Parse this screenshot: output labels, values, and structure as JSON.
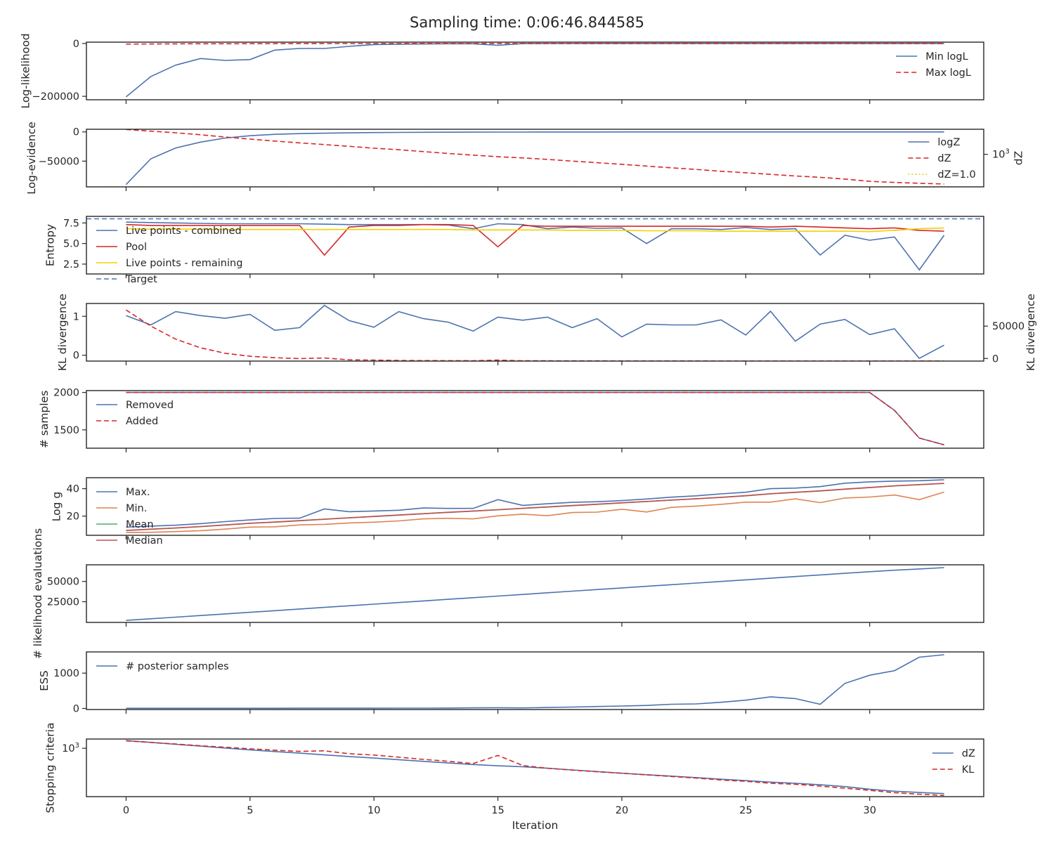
{
  "title": "Sampling time: 0:06:46.844585",
  "chart_data": [
    {
      "type": "line",
      "ylabel": "Log-likelihood",
      "xlim": [
        -1.6,
        34.6
      ],
      "ylim": [
        -213000,
        5000
      ],
      "yticks": [
        {
          "v": 0,
          "label": "0"
        },
        {
          "v": -200000,
          "label": "−200000"
        }
      ],
      "legend_position": "upper right",
      "series": [
        {
          "name": "Min logL",
          "color": "#4c72b0",
          "dash": "solid",
          "x_start": 0,
          "values": [
            -202000,
            -125000,
            -82000,
            -57000,
            -64000,
            -61000,
            -25000,
            -19000,
            -19000,
            -11000,
            -4000,
            -3000,
            -2000,
            -1000,
            -1000,
            -7000,
            -500,
            -300,
            -200,
            -100,
            -80,
            -60,
            -50,
            -40,
            -30,
            -20,
            -15,
            -10,
            -8,
            -6,
            -5,
            -4,
            -3,
            -2
          ]
        },
        {
          "name": "Max logL",
          "color": "#d62728",
          "dash": "dashed",
          "x_start": 0,
          "values": [
            -2500,
            -2000,
            -1500,
            -1200,
            -1000,
            -800,
            -600,
            -500,
            -400,
            -300,
            -250,
            -200,
            -150,
            -120,
            -100,
            -80,
            -60,
            -50,
            -40,
            -30,
            -25,
            -20,
            -15,
            -12,
            -10,
            -8,
            -6,
            -5,
            -4,
            -3,
            -2,
            -2,
            -1,
            -1
          ]
        }
      ]
    },
    {
      "type": "line",
      "ylabel": "Log-evidence",
      "ylabel_right": "dZ",
      "xlim": [
        -1.6,
        34.6
      ],
      "ylim": [
        -94000,
        4500
      ],
      "yticks": [
        {
          "v": 0,
          "label": "0"
        },
        {
          "v": -50000,
          "label": "−50000"
        }
      ],
      "y2_scale": "log",
      "y2lim": [
        0.98,
        210000
      ],
      "y2ticks": [
        {
          "v": 1000,
          "label": "10",
          "sup": "3"
        }
      ],
      "legend_position": "right",
      "series": [
        {
          "name": "logZ",
          "color": "#4c72b0",
          "dash": "solid",
          "axis": "left",
          "x_start": 0,
          "values": [
            -90000,
            -46000,
            -27500,
            -17500,
            -10500,
            -6500,
            -4200,
            -3000,
            -2200,
            -1600,
            -1200,
            -900,
            -700,
            -550,
            -450,
            -350,
            -280,
            -220,
            -180,
            -150,
            -120,
            -100,
            -85,
            -70,
            -60,
            -50,
            -42,
            -35,
            -30,
            -25,
            -20,
            -17,
            -14,
            -12
          ]
        },
        {
          "name": "dZ",
          "color": "#d62728",
          "dash": "dashed",
          "axis": "right",
          "x_start": 0,
          "values": [
            200000,
            140000,
            100000,
            65000,
            40000,
            26000,
            17000,
            11500,
            8000,
            5500,
            3700,
            2700,
            1800,
            1200,
            850,
            600,
            470,
            340,
            240,
            170,
            120,
            82,
            57,
            40,
            27,
            20,
            14,
            10,
            7.5,
            5.2,
            3.2,
            2.5,
            2.1,
            1.8
          ]
        },
        {
          "name": "dZ=1.0",
          "color": "#e8c220",
          "dash": "dotted",
          "axis": "right",
          "constant": 1.0
        }
      ]
    },
    {
      "type": "line",
      "ylabel": "Entropy",
      "xlim": [
        -1.6,
        34.6
      ],
      "ylim": [
        1.3,
        8.3
      ],
      "yticks": [
        {
          "v": 7.5,
          "label": "7.5"
        },
        {
          "v": 5.0,
          "label": "5.0"
        },
        {
          "v": 2.5,
          "label": "2.5"
        }
      ],
      "legend_position": "upper left",
      "series": [
        {
          "name": "Live points - combined",
          "color": "#4c72b0",
          "dash": "solid",
          "x_start": 0,
          "values": [
            7.6,
            7.55,
            7.5,
            7.45,
            7.4,
            7.4,
            7.4,
            7.4,
            7.35,
            7.3,
            7.3,
            7.3,
            7.3,
            7.25,
            6.8,
            7.4,
            7.3,
            6.8,
            7.0,
            6.85,
            6.9,
            5.0,
            6.8,
            6.8,
            6.7,
            6.95,
            6.7,
            6.8,
            3.6,
            6.0,
            5.4,
            5.8,
            1.8,
            6.0
          ]
        },
        {
          "name": "Pool",
          "color": "#d62728",
          "dash": "solid",
          "x_start": 0,
          "values": [
            7.3,
            7.2,
            7.2,
            7.2,
            7.2,
            7.2,
            7.2,
            7.2,
            3.6,
            7.0,
            7.2,
            7.2,
            7.3,
            7.3,
            7.2,
            4.6,
            7.2,
            7.1,
            7.1,
            7.1,
            7.1,
            7.1,
            7.1,
            7.1,
            7.1,
            7.1,
            7.0,
            7.1,
            7.0,
            6.9,
            6.8,
            6.9,
            6.6,
            6.5
          ]
        },
        {
          "name": "Live points - remaining",
          "color": "#f5d000",
          "dash": "solid",
          "x_start": 0,
          "values": [
            6.8,
            6.75,
            6.75,
            6.75,
            6.7,
            6.7,
            6.7,
            6.7,
            6.7,
            6.7,
            6.7,
            6.7,
            6.7,
            6.7,
            6.65,
            6.65,
            6.65,
            6.65,
            6.6,
            6.6,
            6.6,
            6.55,
            6.55,
            6.55,
            6.5,
            6.5,
            6.5,
            6.5,
            6.5,
            6.5,
            6.45,
            6.6,
            6.8,
            6.9
          ]
        },
        {
          "name": "Target",
          "color": "#4c72b0",
          "dash": "dashed",
          "constant": 8.0
        }
      ]
    },
    {
      "type": "line",
      "ylabel": "KL divergence",
      "ylabel_right": "KL divergence",
      "xlim": [
        -1.6,
        34.6
      ],
      "ylim": [
        -0.15,
        1.33
      ],
      "yticks": [
        {
          "v": 1,
          "label": "1"
        },
        {
          "v": 0,
          "label": "0"
        }
      ],
      "y2lim": [
        -4000,
        85000
      ],
      "y2ticks": [
        {
          "v": 50000,
          "label": "50000"
        },
        {
          "v": 0,
          "label": "0"
        }
      ],
      "series": [
        {
          "color": "#4c72b0",
          "dash": "solid",
          "axis": "left",
          "x_start": 0,
          "values": [
            1.02,
            0.78,
            1.12,
            1.02,
            0.95,
            1.05,
            0.64,
            0.71,
            1.28,
            0.89,
            0.72,
            1.12,
            0.94,
            0.85,
            0.62,
            0.98,
            0.9,
            0.98,
            0.71,
            0.94,
            0.47,
            0.8,
            0.78,
            0.78,
            0.91,
            0.52,
            1.13,
            0.36,
            0.8,
            0.92,
            0.53,
            0.68,
            -0.08,
            0.26
          ]
        },
        {
          "color": "#d62728",
          "dash": "dashed",
          "axis": "right",
          "x_start": 0,
          "values": [
            75000,
            50000,
            30000,
            16500,
            8000,
            3500,
            1200,
            -200,
            800,
            -2000,
            -2500,
            -3000,
            -3200,
            -3400,
            -3500,
            -2500,
            -3600,
            -3600,
            -3700,
            -3700,
            -3800,
            -3800,
            -3800,
            -3800,
            -3900,
            -3900,
            -3900,
            -3900,
            -3900,
            -3900,
            -3900,
            -3900,
            -3900,
            -3900
          ]
        }
      ]
    },
    {
      "type": "line",
      "ylabel": "# samples",
      "xlim": [
        -1.6,
        34.6
      ],
      "ylim": [
        1255,
        2025
      ],
      "yticks": [
        {
          "v": 2000,
          "label": "2000"
        },
        {
          "v": 1500,
          "label": "1500"
        }
      ],
      "legend_position": "upper left",
      "series": [
        {
          "name": "Removed",
          "color": "#4c72b0",
          "dash": "solid",
          "x_start": 0,
          "values": [
            2000,
            2000,
            2000,
            2000,
            2000,
            2000,
            2000,
            2000,
            2000,
            2000,
            2000,
            2000,
            2000,
            2000,
            2000,
            2000,
            2000,
            2000,
            2000,
            2000,
            2000,
            2000,
            2000,
            2000,
            2000,
            2000,
            2000,
            2000,
            2000,
            2000,
            2000,
            1760,
            1390,
            1300
          ]
        },
        {
          "name": "Added",
          "color": "#d62728",
          "dash": "dashed",
          "x_start": 0,
          "values": [
            2000,
            2000,
            2000,
            2000,
            2000,
            2000,
            2000,
            2000,
            2000,
            2000,
            2000,
            2000,
            2000,
            2000,
            2000,
            2000,
            2000,
            2000,
            2000,
            2000,
            2000,
            2000,
            2000,
            2000,
            2000,
            2000,
            2000,
            2000,
            2000,
            2000,
            2000,
            1760,
            1390,
            1300
          ]
        }
      ]
    },
    {
      "type": "line",
      "ylabel": "Log g",
      "xlim": [
        -1.6,
        34.6
      ],
      "ylim": [
        6,
        48
      ],
      "yticks": [
        {
          "v": 40,
          "label": "40"
        },
        {
          "v": 20,
          "label": "20"
        }
      ],
      "legend_position": "upper left",
      "series": [
        {
          "name": "Max.",
          "color": "#4c72b0",
          "dash": "solid",
          "x_start": 0,
          "values": [
            12,
            12.7,
            13.4,
            14.5,
            16,
            17.2,
            18.3,
            18.5,
            25.2,
            23.2,
            23.7,
            24.3,
            25.9,
            25.6,
            25.6,
            32,
            27.8,
            29,
            30,
            30.5,
            31.3,
            32.5,
            33.8,
            34.8,
            36.2,
            37.4,
            40,
            40.4,
            41.5,
            44,
            45,
            45.5,
            45.8,
            46.5
          ]
        },
        {
          "name": "Min.",
          "color": "#dd8452",
          "dash": "solid",
          "x_start": 0,
          "values": [
            8,
            8.2,
            8.7,
            9.4,
            10.5,
            12,
            12.2,
            13.6,
            14,
            15,
            15.6,
            16.5,
            18,
            18.4,
            18,
            20.2,
            21.4,
            20.3,
            22.6,
            22.9,
            25,
            23,
            26.4,
            27.3,
            28.6,
            30.2,
            30.2,
            32.6,
            29.8,
            33.2,
            33.9,
            35.4,
            32,
            37.5
          ]
        },
        {
          "name": "Mean",
          "color": "#55a868",
          "dash": "solid",
          "x_start": 0,
          "values": [
            9.5,
            10.4,
            11.3,
            12.3,
            13.5,
            14.7,
            15.6,
            16.6,
            17.7,
            18.7,
            19.7,
            20.7,
            21.7,
            22.7,
            23.6,
            24.6,
            25.6,
            26.6,
            27.6,
            28.6,
            29.6,
            30.6,
            31.6,
            32.6,
            33.6,
            34.8,
            36.2,
            37.3,
            38.3,
            39.6,
            40.8,
            42,
            42.9,
            43.8
          ]
        },
        {
          "name": "Median",
          "color": "#c44e52",
          "dash": "solid",
          "x_start": 0,
          "values": [
            9.6,
            10.5,
            11.4,
            12.4,
            13.6,
            14.8,
            15.7,
            16.7,
            17.8,
            18.8,
            19.8,
            20.8,
            21.8,
            22.8,
            23.7,
            24.7,
            25.7,
            26.7,
            27.7,
            28.7,
            29.7,
            30.7,
            31.7,
            32.7,
            33.7,
            34.9,
            36.3,
            37.4,
            38.4,
            39.7,
            40.9,
            42.1,
            43,
            43.9
          ]
        }
      ]
    },
    {
      "type": "line",
      "ylabel": "# likelihood evaluations",
      "xlim": [
        -1.6,
        34.6
      ],
      "ylim": [
        -500,
        70500
      ],
      "yticks": [
        {
          "v": 50000,
          "label": "50000"
        },
        {
          "v": 25000,
          "label": "25000"
        }
      ],
      "series": [
        {
          "color": "#4c72b0",
          "dash": "solid",
          "x_start": 0,
          "values": [
            2000,
            4000,
            6000,
            8000,
            10000,
            12000,
            14000,
            16000,
            18000,
            20000,
            22000,
            24000,
            26000,
            28000,
            30000,
            32000,
            34000,
            36000,
            38000,
            40000,
            42000,
            44000,
            46000,
            48000,
            50000,
            52000,
            54000,
            56000,
            58000,
            60000,
            62000,
            63800,
            65400,
            67000
          ]
        }
      ]
    },
    {
      "type": "line",
      "ylabel": "ESS",
      "xlim": [
        -1.6,
        34.6
      ],
      "ylim": [
        -30,
        1600
      ],
      "yticks": [
        {
          "v": 1000,
          "label": "1000"
        },
        {
          "v": 0,
          "label": "0"
        }
      ],
      "legend_position": "upper left",
      "series": [
        {
          "name": "# posterior samples",
          "color": "#4c72b0",
          "dash": "solid",
          "x_start": 0,
          "values": [
            5,
            5,
            5,
            5,
            5,
            6,
            6,
            7,
            7,
            8,
            8,
            9,
            10,
            12,
            18,
            22,
            15,
            28,
            40,
            55,
            70,
            85,
            120,
            130,
            175,
            235,
            330,
            280,
            120,
            710,
            940,
            1070,
            1450,
            1520
          ]
        }
      ]
    },
    {
      "type": "line",
      "ylabel": "Stopping criteria",
      "xlabel": "Iteration",
      "xlim": [
        -1.6,
        34.6
      ],
      "y_scale": "log",
      "ylim": [
        0.12,
        5600
      ],
      "yticks": [
        {
          "v": 1000,
          "label": "10",
          "sup": "3"
        }
      ],
      "xticks": [
        0,
        5,
        10,
        15,
        20,
        25,
        30
      ],
      "legend_position": "upper right",
      "series": [
        {
          "name": "dZ",
          "color": "#4c72b0",
          "dash": "solid",
          "x_start": 0,
          "values": [
            4200,
            3000,
            2100,
            1480,
            1050,
            740,
            540,
            400,
            290,
            215,
            160,
            118,
            87,
            64,
            48,
            38,
            32,
            24,
            17.5,
            13,
            9.5,
            7.2,
            5.5,
            4.2,
            3.1,
            2.4,
            1.8,
            1.45,
            1.1,
            0.78,
            0.48,
            0.33,
            0.26,
            0.21
          ]
        },
        {
          "name": "KL",
          "color": "#d62728",
          "dash": "dashed",
          "x_start": 0,
          "values": [
            4000,
            3000,
            2200,
            1600,
            1200,
            900,
            700,
            560,
            620,
            360,
            280,
            190,
            125,
            88,
            58,
            260,
            40,
            24,
            17,
            12.5,
            9.5,
            7,
            5.2,
            3.8,
            2.7,
            2.1,
            1.45,
            1.2,
            0.86,
            0.58,
            0.39,
            0.25,
            0.19,
            0.15
          ]
        }
      ]
    }
  ]
}
